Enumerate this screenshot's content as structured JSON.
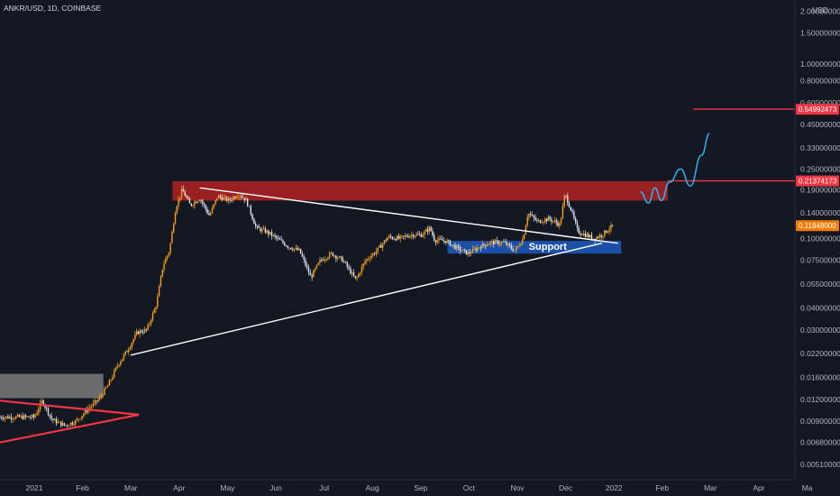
{
  "chart_data": {
    "type": "candlestick",
    "symbol": "ANKR/USD, 1D, COINBASE",
    "currency": "USD",
    "y_scale": "log",
    "ylim": [
      0.0049,
      2.1
    ],
    "y_ticks": [
      "2.00000000",
      "1.50000000",
      "1.00000000",
      "0.80000000",
      "0.60000000",
      "0.45000000",
      "0.33000000",
      "0.25000000",
      "0.19000000",
      "0.14000000",
      "0.10000000",
      "0.07500000",
      "0.05500000",
      "0.04000000",
      "0.03000000",
      "0.02200000",
      "0.01600000",
      "0.01200000",
      "0.00900000",
      "0.00680000",
      "0.00510000"
    ],
    "x_ticks": [
      "2021",
      "Feb",
      "Mar",
      "Apr",
      "May",
      "Jun",
      "Jul",
      "Aug",
      "Sep",
      "Oct",
      "Nov",
      "Dec",
      "2022",
      "Feb",
      "Mar",
      "Apr",
      "Ma"
    ],
    "price_labels": [
      {
        "text": "0.54992473",
        "value": 0.54992473,
        "color": "#f23645"
      },
      {
        "text": "0.21374173",
        "value": 0.21374173,
        "color": "#f23645"
      },
      {
        "text": "0.11848000",
        "value": 0.11848,
        "color": "#f57c00"
      }
    ],
    "price_path": [
      [
        "2021-01-01",
        0.0095
      ],
      [
        "2021-01-06",
        0.0118
      ],
      [
        "2021-01-12",
        0.0092
      ],
      [
        "2021-01-20",
        0.0085
      ],
      [
        "2021-01-27",
        0.009
      ],
      [
        "2021-02-03",
        0.0105
      ],
      [
        "2021-02-10",
        0.012
      ],
      [
        "2021-02-16",
        0.0145
      ],
      [
        "2021-02-22",
        0.019
      ],
      [
        "2021-02-28",
        0.023
      ],
      [
        "2021-03-06",
        0.029
      ],
      [
        "2021-03-12",
        0.03
      ],
      [
        "2021-03-18",
        0.042
      ],
      [
        "2021-03-22",
        0.07
      ],
      [
        "2021-03-26",
        0.085
      ],
      [
        "2021-03-30",
        0.15
      ],
      [
        "2021-04-03",
        0.19
      ],
      [
        "2021-04-08",
        0.155
      ],
      [
        "2021-04-14",
        0.17
      ],
      [
        "2021-04-20",
        0.135
      ],
      [
        "2021-04-25",
        0.175
      ],
      [
        "2021-05-02",
        0.165
      ],
      [
        "2021-05-08",
        0.18
      ],
      [
        "2021-05-13",
        0.165
      ],
      [
        "2021-05-19",
        0.115
      ],
      [
        "2021-05-25",
        0.11
      ],
      [
        "2021-06-01",
        0.1
      ],
      [
        "2021-06-08",
        0.09
      ],
      [
        "2021-06-15",
        0.085
      ],
      [
        "2021-06-22",
        0.06
      ],
      [
        "2021-06-28",
        0.075
      ],
      [
        "2021-07-05",
        0.082
      ],
      [
        "2021-07-12",
        0.075
      ],
      [
        "2021-07-20",
        0.058
      ],
      [
        "2021-07-26",
        0.075
      ],
      [
        "2021-08-02",
        0.085
      ],
      [
        "2021-08-09",
        0.102
      ],
      [
        "2021-08-16",
        0.1
      ],
      [
        "2021-08-23",
        0.105
      ],
      [
        "2021-08-30",
        0.105
      ],
      [
        "2021-09-04",
        0.115
      ],
      [
        "2021-09-07",
        0.098
      ],
      [
        "2021-09-14",
        0.097
      ],
      [
        "2021-09-21",
        0.088
      ],
      [
        "2021-09-28",
        0.082
      ],
      [
        "2021-10-05",
        0.09
      ],
      [
        "2021-10-12",
        0.095
      ],
      [
        "2021-10-20",
        0.095
      ],
      [
        "2021-10-27",
        0.085
      ],
      [
        "2021-11-01",
        0.1
      ],
      [
        "2021-11-04",
        0.14
      ],
      [
        "2021-11-10",
        0.125
      ],
      [
        "2021-11-17",
        0.13
      ],
      [
        "2021-11-24",
        0.12
      ],
      [
        "2021-11-27",
        0.18
      ],
      [
        "2021-12-01",
        0.145
      ],
      [
        "2021-12-05",
        0.11
      ],
      [
        "2021-12-10",
        0.105
      ],
      [
        "2021-12-15",
        0.1
      ],
      [
        "2021-12-20",
        0.105
      ],
      [
        "2021-12-25",
        0.115
      ],
      [
        "2021-12-27",
        0.1185
      ]
    ],
    "zones": [
      {
        "name": "resistance",
        "from": "2021-03-28",
        "to": "2022-01-30",
        "low": 0.165,
        "high": 0.213,
        "color": "#b22222"
      },
      {
        "name": "support",
        "label": "Support",
        "from": "2021-09-15",
        "to": "2022-01-01",
        "low": 0.082,
        "high": 0.097,
        "color": "#1e5bbf"
      },
      {
        "name": "base",
        "from": "2020-12-01",
        "to": "2021-02-13",
        "low": 0.0122,
        "high": 0.0168,
        "color": "#8a8a8a"
      }
    ],
    "lines": [
      {
        "name": "descending-trendline",
        "points": [
          [
            "2021-04-14",
            0.195
          ],
          [
            "2021-12-30",
            0.094
          ]
        ],
        "color": "#ffffff"
      },
      {
        "name": "ascending-trendline",
        "points": [
          [
            "2021-03-02",
            0.0215
          ],
          [
            "2021-12-20",
            0.094
          ]
        ],
        "color": "#ffffff"
      },
      {
        "name": "target-line-high",
        "points": [
          [
            "2022-02-15",
            0.5499
          ],
          [
            "2022-05-31",
            0.5499
          ]
        ],
        "color": "#f23645"
      },
      {
        "name": "target-line-mid",
        "points": [
          [
            "2022-01-30",
            0.2137
          ],
          [
            "2022-05-31",
            0.2137
          ]
        ],
        "color": "#f23645"
      },
      {
        "name": "early-triangle-upper",
        "points": [
          [
            "2020-12-01",
            0.0118
          ],
          [
            "2021-03-07",
            0.0098
          ]
        ],
        "color": "#f23645"
      },
      {
        "name": "early-triangle-lower",
        "points": [
          [
            "2020-12-01",
            0.0068
          ],
          [
            "2021-03-07",
            0.0098
          ]
        ],
        "color": "#f23645"
      }
    ],
    "projection": {
      "color": "#29b6f6",
      "points": [
        [
          "2022-01-13",
          0.185
        ],
        [
          "2022-01-18",
          0.16
        ],
        [
          "2022-01-22",
          0.195
        ],
        [
          "2022-01-26",
          0.165
        ],
        [
          "2022-01-31",
          0.21
        ],
        [
          "2022-02-07",
          0.25
        ],
        [
          "2022-02-13",
          0.2
        ],
        [
          "2022-02-20",
          0.3
        ],
        [
          "2022-02-25",
          0.4
        ]
      ]
    }
  }
}
